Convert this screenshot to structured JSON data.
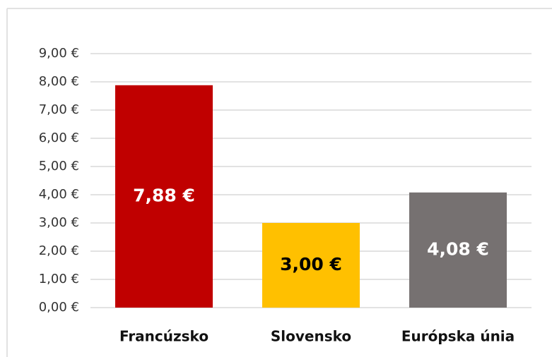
{
  "chart_data": {
    "type": "bar",
    "categories": [
      "Francúzsko",
      "Slovensko",
      "Európska únia"
    ],
    "values": [
      7.88,
      3.0,
      4.08
    ],
    "value_labels": [
      "7,88 €",
      "3,00 €",
      "4,08 €"
    ],
    "colors": [
      "#c00000",
      "#ffc000",
      "#767171"
    ],
    "value_label_colors": [
      "#ffffff",
      "#000000",
      "#ffffff"
    ],
    "ylim": [
      0,
      9
    ],
    "yticks": [
      {
        "value": 0,
        "label": "0,00 €"
      },
      {
        "value": 1,
        "label": "1,00 €"
      },
      {
        "value": 2,
        "label": "2,00 €"
      },
      {
        "value": 3,
        "label": "3,00 €"
      },
      {
        "value": 4,
        "label": "4,00 €"
      },
      {
        "value": 5,
        "label": "5,00 €"
      },
      {
        "value": 6,
        "label": "6,00 €"
      },
      {
        "value": 7,
        "label": "7,00 €"
      },
      {
        "value": 8,
        "label": "8,00 €"
      },
      {
        "value": 9,
        "label": "9,00 €"
      }
    ],
    "grid": true
  }
}
